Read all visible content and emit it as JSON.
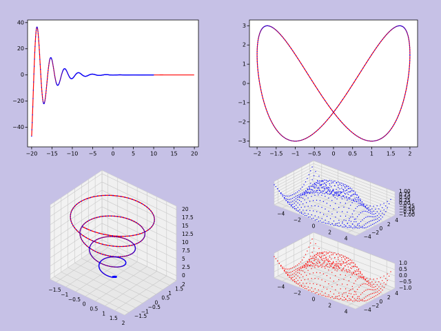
{
  "chart_data": [
    {
      "panel": "top-left",
      "type": "line",
      "description_of_series": "damped oscillation, red line with blue dotted overlay",
      "xlim": [
        -21,
        21
      ],
      "ylim": [
        -55,
        42
      ],
      "x_ticks": [
        -20,
        -15,
        -10,
        -5,
        0,
        5,
        10,
        15,
        20
      ],
      "y_ticks": [
        -40,
        -20,
        0,
        20,
        40
      ],
      "curve": {
        "x_start": -20,
        "red_x_end": 20,
        "blue_x_end": 10,
        "envelope_at_start": 55,
        "decay_rate": 0.3,
        "angular_freq": 1.85
      },
      "colors": {
        "line": "#ff0000",
        "dots": "#0000ff"
      },
      "grid": false
    },
    {
      "panel": "top-right",
      "type": "line",
      "description_of_series": "closed lemniscate-like curve x=2cos(t), y=3sin(2t+pi/6), red line with blue dotted overlay",
      "xlim": [
        -2.2,
        2.2
      ],
      "ylim": [
        -3.3,
        3.3
      ],
      "x_ticks": [
        -2.0,
        -1.5,
        -1.0,
        -0.5,
        0.0,
        0.5,
        1.0,
        1.5,
        2.0
      ],
      "y_ticks": [
        -3,
        -2,
        -1,
        0,
        1,
        2,
        3
      ],
      "colors": {
        "line": "#ff0000",
        "dots": "#0000ff"
      },
      "grid": false
    },
    {
      "panel": "bottom-left",
      "type": "line3d",
      "description_of_series": "3D helix/spiral, red line with blue dotted overlay",
      "x_ticks": [
        -1.5,
        -1.0,
        -0.5,
        0.0,
        0.5,
        1.0,
        1.5,
        2.0
      ],
      "y_ticks": [
        -1.5,
        -1.0,
        -0.5,
        0.0,
        0.5,
        1.0,
        1.5,
        2.0
      ],
      "z_ticks": [
        0.0,
        2.5,
        5.0,
        7.5,
        10.0,
        12.5,
        15.0,
        17.5,
        20.0
      ],
      "xlim": [
        -1.8,
        2.0
      ],
      "ylim": [
        -1.8,
        2.0
      ],
      "zlim": [
        -1.5,
        21
      ],
      "helix": {
        "turns": 4.5,
        "z_start": -1,
        "z_end": 20,
        "radius_start": 0.2,
        "radius_end": 2.0
      },
      "colors": {
        "line": "#ff0000",
        "dots": "#0000ff"
      },
      "grid": true
    },
    {
      "panel": "bottom-right-top",
      "type": "surface3d_points",
      "description_of_series": "sin(sqrt(x^2+y^2)) sampled as blue dots",
      "x_ticks": [
        -4,
        -2,
        0,
        2,
        4
      ],
      "y_ticks": [
        -4,
        -2,
        0,
        2,
        4
      ],
      "z_ticks": [
        "-1.00",
        "-0.75",
        "-0.50",
        "-0.25",
        "0.00",
        "0.25",
        "0.50",
        "0.75",
        "1.00"
      ],
      "xlim": [
        -5,
        5
      ],
      "ylim": [
        -5,
        5
      ],
      "zlim": [
        -1,
        1
      ],
      "colors": {
        "dots": "#0000ff"
      },
      "grid": true
    },
    {
      "panel": "bottom-right-bottom",
      "type": "surface3d_points",
      "description_of_series": "sin(sqrt(x^2+y^2)) sampled as red dots",
      "x_ticks": [
        -4,
        -2,
        0,
        2,
        4
      ],
      "y_ticks": [
        -4,
        -2,
        0,
        2,
        4
      ],
      "z_ticks": [
        "-1.0",
        "-0.5",
        "0.0",
        "0.5",
        "1.0"
      ],
      "xlim": [
        -5,
        5
      ],
      "ylim": [
        -5,
        5
      ],
      "zlim": [
        -1,
        1
      ],
      "colors": {
        "dots": "#ff0000"
      },
      "grid": true
    }
  ],
  "style": {
    "figure_bg": "#c6c1e6",
    "axes_bg": "#ffffff"
  }
}
